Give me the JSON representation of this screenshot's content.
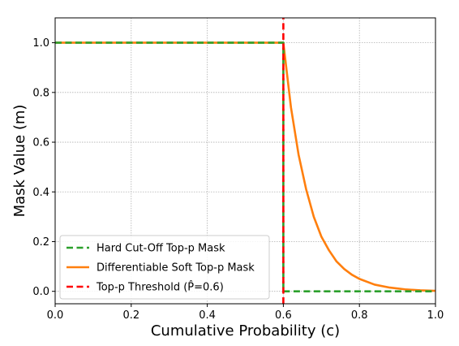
{
  "chart_data": {
    "type": "line",
    "title": "",
    "xlabel": "Cumulative Probability (c)",
    "ylabel": "Mask Value (m)",
    "xlim": [
      0.0,
      1.0
    ],
    "ylim": [
      -0.05,
      1.1
    ],
    "xticks": [
      "0.0",
      "0.2",
      "0.4",
      "0.6",
      "0.8",
      "1.0"
    ],
    "yticks": [
      "0.0",
      "0.2",
      "0.4",
      "0.6",
      "0.8",
      "1.0"
    ],
    "grid": true,
    "legend_position": "lower-left",
    "threshold": 0.6,
    "series": [
      {
        "name": "Hard Cut-Off Top-p Mask",
        "color": "#2ca02c",
        "style": "dashed",
        "x": [
          0.0,
          0.6,
          0.6,
          1.0
        ],
        "y": [
          1.0,
          1.0,
          0.0,
          0.0
        ]
      },
      {
        "name": "Differentiable Soft Top-p Mask",
        "color": "#ff7f0e",
        "style": "solid",
        "x": [
          0.0,
          0.6,
          0.62,
          0.64,
          0.66,
          0.68,
          0.7,
          0.72,
          0.74,
          0.76,
          0.78,
          0.8,
          0.84,
          0.88,
          0.92,
          0.96,
          1.0
        ],
        "y": [
          1.0,
          1.0,
          0.74,
          0.55,
          0.41,
          0.3,
          0.22,
          0.165,
          0.12,
          0.09,
          0.067,
          0.05,
          0.027,
          0.015,
          0.008,
          0.004,
          0.002
        ]
      },
      {
        "name": "Top-p Threshold (P̂=0.6)",
        "color": "#ff0000",
        "style": "dashed",
        "x": [
          0.6,
          0.6
        ],
        "y": [
          -0.05,
          1.1
        ]
      }
    ]
  }
}
